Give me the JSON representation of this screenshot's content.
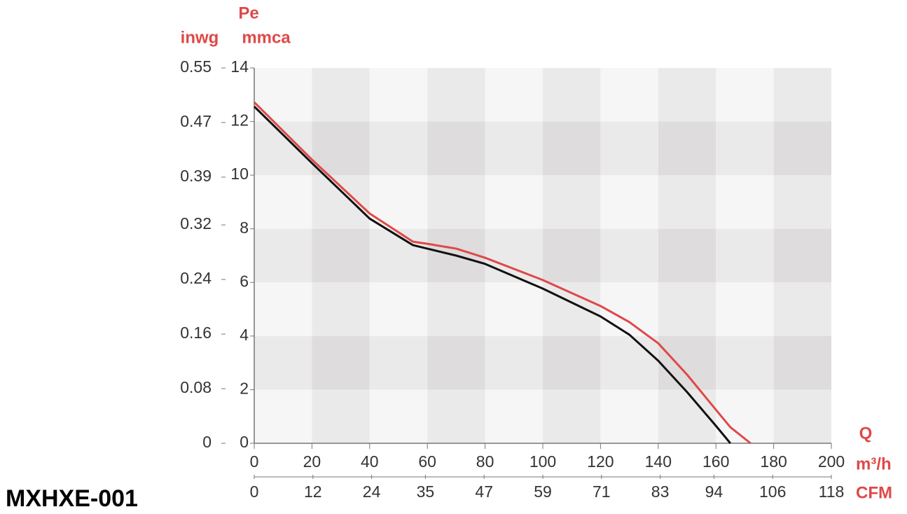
{
  "model": "MXHXE-001",
  "chart_data": {
    "type": "line",
    "y_title": "Pe",
    "y_label": "mmca",
    "y2_label": "inwg",
    "x_title": "Q",
    "x_label": "m³/h",
    "x2_label": "CFM",
    "x": [
      0,
      20,
      40,
      55,
      60,
      70,
      80,
      100,
      120,
      130,
      140,
      150,
      160,
      165,
      172
    ],
    "series": [
      {
        "color": "#111111",
        "values": [
          12.56,
          10.45,
          8.38,
          7.39,
          7.26,
          7.0,
          6.69,
          5.77,
          4.73,
          4.05,
          3.08,
          1.91,
          0.65,
          0,
          null
        ]
      },
      {
        "color": "#e04848",
        "values": [
          12.72,
          10.58,
          8.57,
          7.52,
          7.44,
          7.26,
          6.92,
          6.09,
          5.12,
          4.52,
          3.73,
          2.56,
          1.25,
          0.6,
          0
        ]
      }
    ],
    "xlim": [
      0,
      200
    ],
    "xticks": [
      0,
      20,
      40,
      60,
      80,
      100,
      120,
      140,
      160,
      180,
      200
    ],
    "x2lim": [
      0,
      118
    ],
    "x2ticks": [
      0,
      12,
      24,
      35,
      47,
      59,
      71,
      83,
      94,
      106,
      118
    ],
    "ylim": [
      0,
      14
    ],
    "yticks": [
      0,
      2,
      4,
      6,
      8,
      10,
      12,
      14
    ],
    "y2lim": [
      0,
      0.55
    ],
    "y2ticks": [
      0,
      0.08,
      0.16,
      0.24,
      0.32,
      0.39,
      0.47,
      0.55
    ]
  }
}
